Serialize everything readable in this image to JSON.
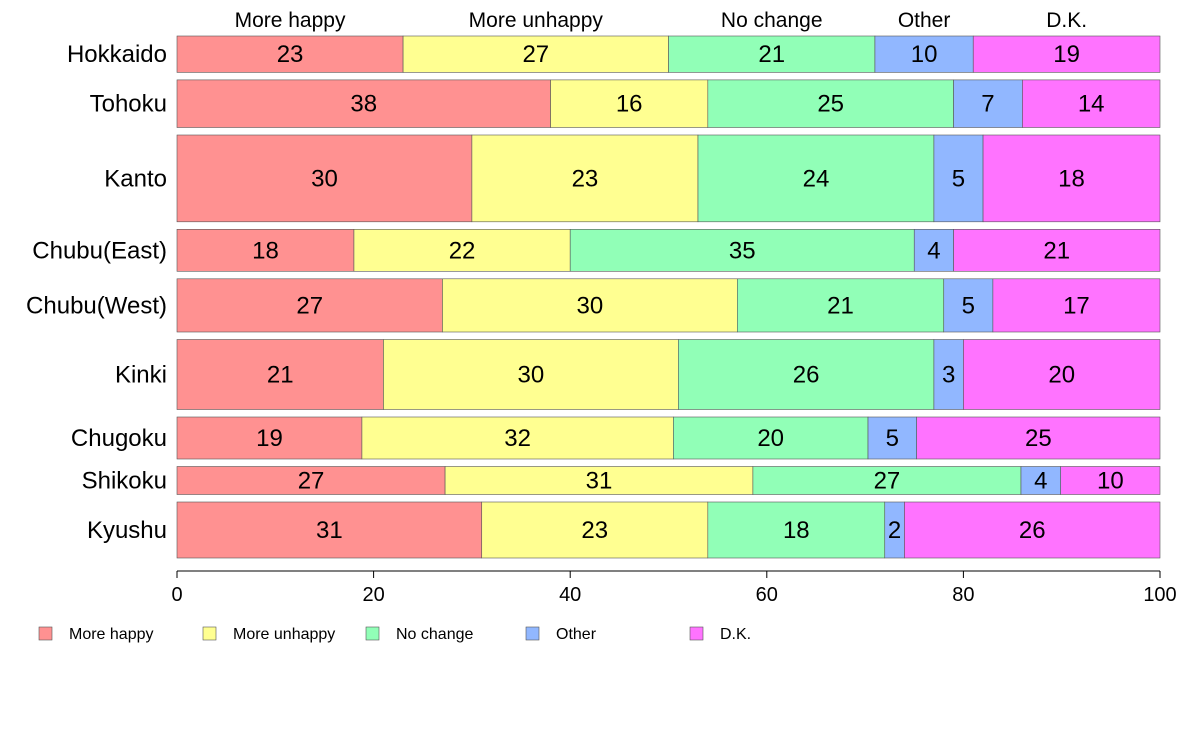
{
  "chart_data": {
    "type": "bar",
    "orientation": "horizontal",
    "stacked": true,
    "normalized": "percent",
    "title": "",
    "xlabel": "",
    "ylabel": "",
    "xlim": [
      0,
      100
    ],
    "x_ticks": [
      0,
      20,
      40,
      60,
      80,
      100
    ],
    "grid": false,
    "legend_position": "bottom-left",
    "categories": [
      "Hokkaido",
      "Tohoku",
      "Kanto",
      "Chubu(East)",
      "Chubu(West)",
      "Kinki",
      "Chugoku",
      "Shikoku",
      "Kyushu"
    ],
    "relative_bar_widths": [
      0.65,
      0.85,
      1.55,
      0.75,
      0.95,
      1.25,
      0.75,
      0.5,
      1.0
    ],
    "series": [
      {
        "name": "More happy",
        "color": "#ff9191",
        "values": [
          23,
          38,
          30,
          18,
          27,
          21,
          19,
          27,
          31
        ]
      },
      {
        "name": "More unhappy",
        "color": "#ffff91",
        "values": [
          27,
          16,
          23,
          22,
          30,
          30,
          32,
          31,
          23
        ]
      },
      {
        "name": "No change",
        "color": "#91ffb7",
        "values": [
          21,
          25,
          24,
          35,
          21,
          26,
          20,
          27,
          18
        ]
      },
      {
        "name": "Other",
        "color": "#91b7ff",
        "values": [
          10,
          7,
          5,
          4,
          5,
          3,
          5,
          4,
          2
        ]
      },
      {
        "name": "D.K.",
        "color": "#ff73ff",
        "values": [
          19,
          14,
          18,
          21,
          17,
          20,
          25,
          10,
          26
        ]
      }
    ]
  }
}
